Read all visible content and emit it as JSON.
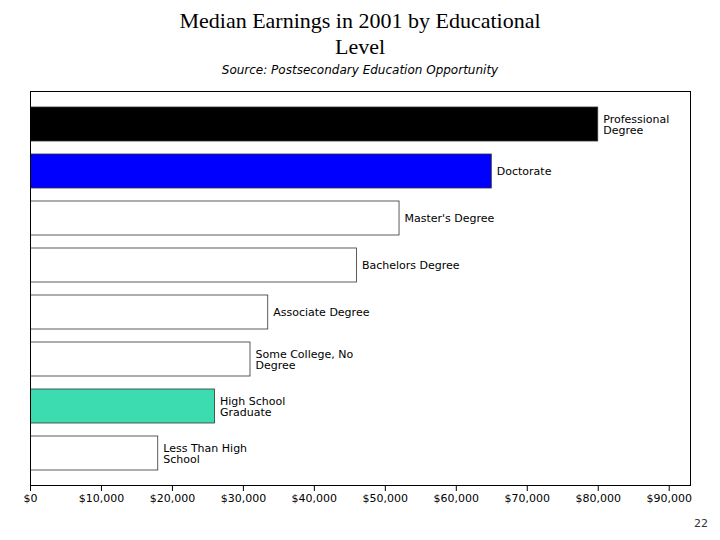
{
  "chart_data": {
    "type": "bar",
    "title": "Median Earnings in 2001 by Educational\nLevel",
    "subtitle": "Source: Postsecondary Education Opportunity",
    "footnote": "22",
    "orientation": "horizontal",
    "categories": [
      "Less Than High\nSchool",
      "High School\nGraduate",
      "Some College, No\nDegree",
      "Associate Degree",
      "Bachelors Degree",
      "Master's Degree",
      "Doctorate",
      "Professional\nDegree"
    ],
    "values": [
      18000,
      26000,
      31000,
      33500,
      46000,
      52000,
      65000,
      80000
    ],
    "colors": [
      "white",
      "#3DDBB0",
      "white",
      "white",
      "white",
      "white",
      "blue",
      "black"
    ],
    "xlim": [
      0,
      93000
    ],
    "xticks": [
      {
        "value": 0,
        "label": "$0"
      },
      {
        "value": 10000,
        "label": "$10,000"
      },
      {
        "value": 20000,
        "label": "$20,000"
      },
      {
        "value": 30000,
        "label": "$30,000"
      },
      {
        "value": 40000,
        "label": "$40,000"
      },
      {
        "value": 50000,
        "label": "$50,000"
      },
      {
        "value": 60000,
        "label": "$60,000"
      },
      {
        "value": 70000,
        "label": "$70,000"
      },
      {
        "value": 80000,
        "label": "$80,000"
      },
      {
        "value": 90000,
        "label": "$90,000"
      }
    ],
    "tick_labels": "x"
  }
}
